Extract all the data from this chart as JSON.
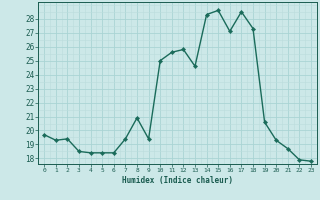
{
  "x": [
    0,
    1,
    2,
    3,
    4,
    5,
    6,
    7,
    8,
    9,
    10,
    11,
    12,
    13,
    14,
    15,
    16,
    17,
    18,
    19,
    20,
    21,
    22,
    23
  ],
  "y": [
    19.7,
    19.3,
    19.4,
    18.5,
    18.4,
    18.4,
    18.4,
    19.4,
    20.9,
    19.4,
    25.0,
    25.6,
    25.8,
    24.6,
    28.3,
    28.6,
    27.1,
    28.5,
    27.3,
    20.6,
    19.3,
    18.7,
    17.9,
    17.8
  ],
  "line_color": "#1a6b5a",
  "marker_color": "#1a6b5a",
  "bg_color": "#cce8e8",
  "grid_major_color": "#aad4d4",
  "grid_minor_color": "#bbdddd",
  "xlabel": "Humidex (Indice chaleur)",
  "ylabel_ticks": [
    18,
    19,
    20,
    21,
    22,
    23,
    24,
    25,
    26,
    27,
    28
  ],
  "ylim": [
    17.6,
    29.2
  ],
  "xlim": [
    -0.5,
    23.5
  ],
  "tick_color": "#1a5c50",
  "label_color": "#1a5c50",
  "xlabel_fontsize": 5.5,
  "ytick_fontsize": 5.5,
  "xtick_fontsize": 4.5,
  "linewidth": 1.0,
  "markersize": 2.2
}
